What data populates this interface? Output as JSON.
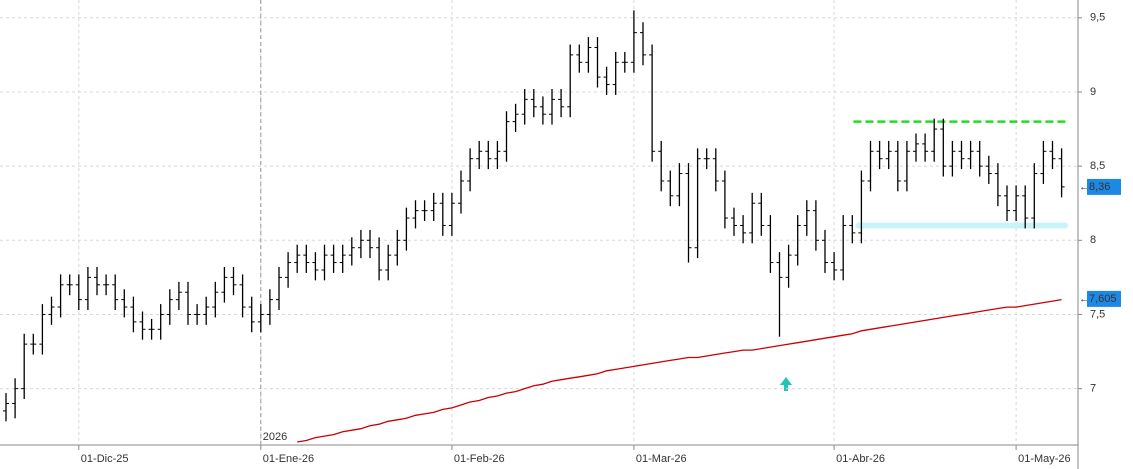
{
  "chart_data": {
    "type": "ohlc",
    "categories": [
      null,
      null,
      null,
      null,
      null,
      null,
      null,
      null,
      "01-Dic-25",
      null,
      null,
      null,
      null,
      null,
      null,
      null,
      null,
      null,
      null,
      null,
      null,
      null,
      null,
      null,
      null,
      null,
      null,
      null,
      "01-Ene-26",
      null,
      null,
      null,
      null,
      null,
      null,
      null,
      null,
      null,
      null,
      null,
      null,
      null,
      null,
      null,
      null,
      null,
      null,
      null,
      null,
      "01-Feb-26",
      null,
      null,
      null,
      null,
      null,
      null,
      null,
      null,
      null,
      null,
      null,
      null,
      null,
      null,
      null,
      null,
      null,
      null,
      null,
      "01-Mar-26",
      null,
      null,
      null,
      null,
      null,
      null,
      null,
      null,
      null,
      null,
      null,
      null,
      null,
      null,
      null,
      null,
      null,
      null,
      null,
      null,
      null,
      "01-Abr-26",
      null,
      null,
      null,
      null,
      null,
      null,
      null,
      null,
      null,
      null,
      null,
      null,
      null,
      null,
      null,
      null,
      null,
      null,
      null,
      "01-May-26",
      null,
      null,
      null,
      null,
      null
    ],
    "open": [
      6.85,
      6.9,
      7.0,
      7.3,
      7.3,
      7.5,
      7.55,
      7.7,
      7.7,
      7.6,
      7.75,
      7.7,
      7.7,
      7.6,
      7.55,
      7.45,
      7.4,
      7.4,
      7.5,
      7.6,
      7.65,
      7.5,
      7.5,
      7.55,
      7.65,
      7.75,
      7.7,
      7.55,
      7.45,
      7.5,
      7.6,
      7.75,
      7.85,
      7.9,
      7.85,
      7.8,
      7.9,
      7.85,
      7.9,
      7.95,
      8.0,
      7.95,
      7.8,
      7.9,
      8.0,
      8.15,
      8.2,
      8.2,
      8.25,
      8.1,
      8.25,
      8.4,
      8.55,
      8.6,
      8.55,
      8.6,
      8.8,
      8.85,
      8.95,
      8.9,
      8.85,
      8.95,
      8.9,
      9.25,
      9.2,
      9.3,
      9.1,
      9.05,
      9.2,
      9.2,
      9.4,
      9.25,
      8.6,
      8.4,
      8.3,
      8.45,
      7.95,
      8.55,
      8.55,
      8.4,
      8.15,
      8.1,
      8.05,
      8.25,
      8.1,
      7.85,
      7.75,
      7.9,
      8.1,
      8.2,
      8.0,
      7.85,
      7.8,
      8.1,
      8.05,
      8.4,
      8.6,
      8.55,
      8.6,
      8.4,
      8.6,
      8.65,
      8.6,
      8.75,
      8.5,
      8.6,
      8.55,
      8.6,
      8.5,
      8.45,
      8.3,
      8.2,
      8.3,
      8.15,
      8.45,
      8.6,
      8.55
    ],
    "high": [
      6.97,
      7.07,
      7.37,
      7.37,
      7.57,
      7.62,
      7.77,
      7.77,
      7.77,
      7.82,
      7.82,
      7.77,
      7.77,
      7.67,
      7.62,
      7.52,
      7.47,
      7.57,
      7.67,
      7.72,
      7.72,
      7.57,
      7.62,
      7.72,
      7.82,
      7.82,
      7.77,
      7.62,
      7.57,
      7.67,
      7.82,
      7.92,
      7.97,
      7.97,
      7.92,
      7.97,
      7.97,
      7.97,
      8.02,
      8.07,
      8.07,
      8.02,
      7.97,
      8.07,
      8.22,
      8.27,
      8.27,
      8.32,
      8.32,
      8.32,
      8.47,
      8.62,
      8.67,
      8.67,
      8.67,
      8.87,
      8.92,
      9.02,
      9.02,
      8.97,
      9.02,
      9.02,
      9.32,
      9.32,
      9.37,
      9.37,
      9.17,
      9.27,
      9.27,
      9.55,
      9.47,
      9.32,
      8.67,
      8.47,
      8.52,
      8.52,
      8.62,
      8.62,
      8.62,
      8.47,
      8.22,
      8.17,
      8.32,
      8.32,
      8.17,
      7.92,
      7.97,
      8.17,
      8.27,
      8.27,
      8.07,
      7.92,
      8.17,
      8.17,
      8.47,
      8.67,
      8.67,
      8.67,
      8.67,
      8.67,
      8.72,
      8.72,
      8.82,
      8.82,
      8.67,
      8.67,
      8.67,
      8.67,
      8.57,
      8.52,
      8.37,
      8.37,
      8.37,
      8.52,
      8.67,
      8.67,
      8.62
    ],
    "low": [
      6.78,
      6.8,
      6.93,
      7.23,
      7.23,
      7.43,
      7.48,
      7.63,
      7.53,
      7.53,
      7.63,
      7.63,
      7.53,
      7.48,
      7.38,
      7.33,
      7.33,
      7.33,
      7.43,
      7.53,
      7.43,
      7.43,
      7.43,
      7.48,
      7.58,
      7.63,
      7.48,
      7.38,
      7.38,
      7.43,
      7.53,
      7.68,
      7.78,
      7.78,
      7.73,
      7.73,
      7.78,
      7.78,
      7.83,
      7.88,
      7.88,
      7.73,
      7.73,
      7.83,
      7.93,
      8.08,
      8.13,
      8.13,
      8.03,
      8.03,
      8.18,
      8.33,
      8.48,
      8.48,
      8.48,
      8.53,
      8.73,
      8.78,
      8.83,
      8.78,
      8.78,
      8.83,
      8.83,
      9.13,
      9.13,
      9.03,
      8.98,
      8.98,
      9.13,
      9.13,
      9.18,
      8.53,
      8.33,
      8.23,
      8.23,
      7.85,
      7.88,
      8.48,
      8.33,
      8.08,
      8.03,
      7.98,
      7.98,
      8.03,
      7.78,
      7.35,
      7.68,
      7.83,
      8.03,
      7.93,
      7.78,
      7.73,
      7.73,
      7.98,
      7.98,
      8.33,
      8.48,
      8.48,
      8.33,
      8.33,
      8.53,
      8.53,
      8.53,
      8.43,
      8.43,
      8.48,
      8.48,
      8.43,
      8.38,
      8.23,
      8.13,
      8.13,
      8.08,
      8.08,
      8.38,
      8.48,
      8.29
    ],
    "close": [
      6.9,
      7.0,
      7.3,
      7.3,
      7.5,
      7.55,
      7.7,
      7.7,
      7.6,
      7.75,
      7.7,
      7.7,
      7.6,
      7.55,
      7.45,
      7.4,
      7.4,
      7.5,
      7.6,
      7.65,
      7.5,
      7.5,
      7.55,
      7.65,
      7.75,
      7.7,
      7.55,
      7.45,
      7.5,
      7.6,
      7.75,
      7.85,
      7.9,
      7.85,
      7.8,
      7.9,
      7.85,
      7.9,
      7.95,
      8.0,
      7.95,
      7.8,
      7.9,
      8.0,
      8.15,
      8.2,
      8.2,
      8.25,
      8.1,
      8.25,
      8.4,
      8.55,
      8.6,
      8.55,
      8.6,
      8.8,
      8.85,
      8.95,
      8.9,
      8.85,
      8.95,
      8.9,
      9.25,
      9.2,
      9.3,
      9.1,
      9.05,
      9.2,
      9.2,
      9.4,
      9.25,
      8.6,
      8.4,
      8.3,
      8.45,
      7.95,
      8.55,
      8.55,
      8.4,
      8.15,
      8.1,
      8.05,
      8.25,
      8.1,
      7.85,
      7.75,
      7.9,
      8.1,
      8.2,
      8.0,
      7.85,
      7.8,
      8.1,
      8.05,
      8.4,
      8.6,
      8.55,
      8.6,
      8.4,
      8.6,
      8.65,
      8.6,
      8.75,
      8.5,
      8.6,
      8.55,
      8.6,
      8.5,
      8.45,
      8.3,
      8.2,
      8.3,
      8.15,
      8.45,
      8.6,
      8.55,
      8.36
    ],
    "color": "#000000",
    "moving_average": {
      "color": "#cc0000",
      "values": [
        null,
        null,
        null,
        null,
        null,
        null,
        null,
        null,
        null,
        null,
        null,
        null,
        null,
        null,
        null,
        null,
        null,
        null,
        null,
        null,
        null,
        null,
        null,
        null,
        null,
        null,
        null,
        null,
        null,
        null,
        null,
        null,
        6.64,
        6.65,
        6.67,
        6.68,
        6.69,
        6.71,
        6.72,
        6.73,
        6.75,
        6.76,
        6.78,
        6.79,
        6.8,
        6.82,
        6.83,
        6.84,
        6.86,
        6.87,
        6.89,
        6.91,
        6.92,
        6.94,
        6.95,
        6.97,
        6.98,
        7.0,
        7.02,
        7.03,
        7.05,
        7.06,
        7.07,
        7.08,
        7.09,
        7.1,
        7.12,
        7.13,
        7.14,
        7.15,
        7.16,
        7.17,
        7.18,
        7.19,
        7.2,
        7.21,
        7.21,
        7.22,
        7.23,
        7.24,
        7.25,
        7.26,
        7.26,
        7.27,
        7.28,
        7.29,
        7.3,
        7.31,
        7.32,
        7.33,
        7.34,
        7.35,
        7.36,
        7.37,
        7.39,
        7.4,
        7.41,
        7.42,
        7.43,
        7.44,
        7.45,
        7.46,
        7.47,
        7.48,
        7.49,
        7.5,
        7.51,
        7.52,
        7.53,
        7.54,
        7.55,
        7.55,
        7.56,
        7.57,
        7.58,
        7.59,
        7.6
      ]
    },
    "last_price": {
      "value": 8.36,
      "label": "8,36"
    },
    "ma_last": {
      "value": 7.605,
      "label": "7,605"
    },
    "resistance": {
      "value": 8.8,
      "color": "#22dd22"
    },
    "support": {
      "value": 8.1,
      "color": "#c8f4f8"
    },
    "year_label": "2026",
    "ylim": [
      6.62,
      9.62
    ],
    "yticks": [
      7,
      {
        "value": 7.5,
        "label": "7,5"
      },
      8,
      {
        "value": 8.5,
        "label": "8,5"
      },
      9,
      {
        "value": 9.5,
        "label": "9,5"
      }
    ],
    "grid": true
  }
}
